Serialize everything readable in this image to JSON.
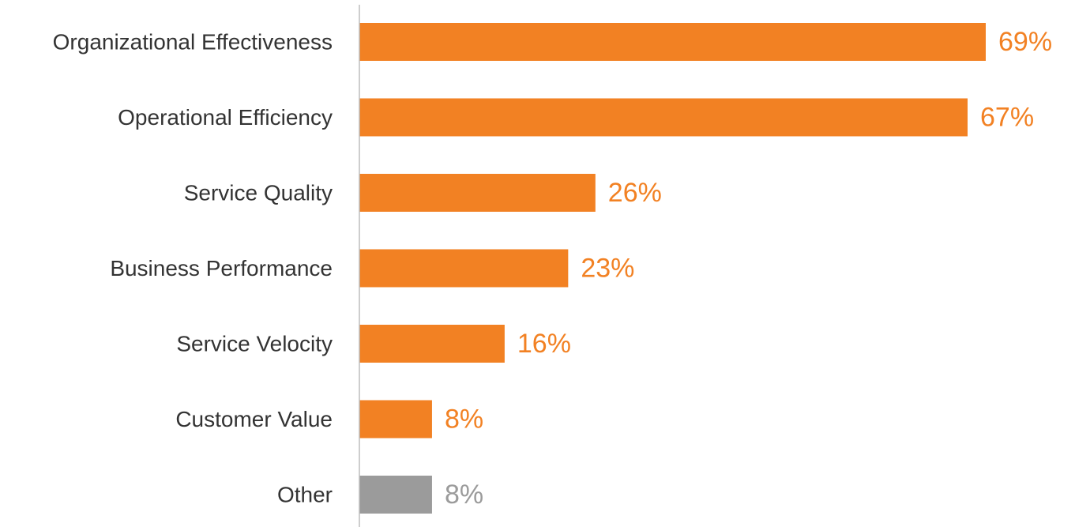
{
  "chart_data": {
    "type": "bar",
    "orientation": "horizontal",
    "categories": [
      "Organizational Effectiveness",
      "Operational Efficiency",
      "Service Quality",
      "Business Performance",
      "Service Velocity",
      "Customer Value",
      "Other"
    ],
    "values": [
      69,
      67,
      26,
      23,
      16,
      8,
      8
    ],
    "value_labels": [
      "69%",
      "67%",
      "26%",
      "23%",
      "16%",
      "8%",
      "8%"
    ],
    "unit": "%",
    "title": "",
    "xlabel": "",
    "ylabel": "",
    "xlim": [
      0,
      69
    ],
    "grid": false,
    "legend": "none",
    "bar_colors": [
      "#F28123",
      "#F28123",
      "#F28123",
      "#F28123",
      "#F28123",
      "#F28123",
      "#9B9B9B"
    ],
    "label_colors": [
      "#F28123",
      "#F28123",
      "#F28123",
      "#F28123",
      "#F28123",
      "#F28123",
      "#9B9B9B"
    ],
    "axis_color": "#BDBDBD"
  }
}
